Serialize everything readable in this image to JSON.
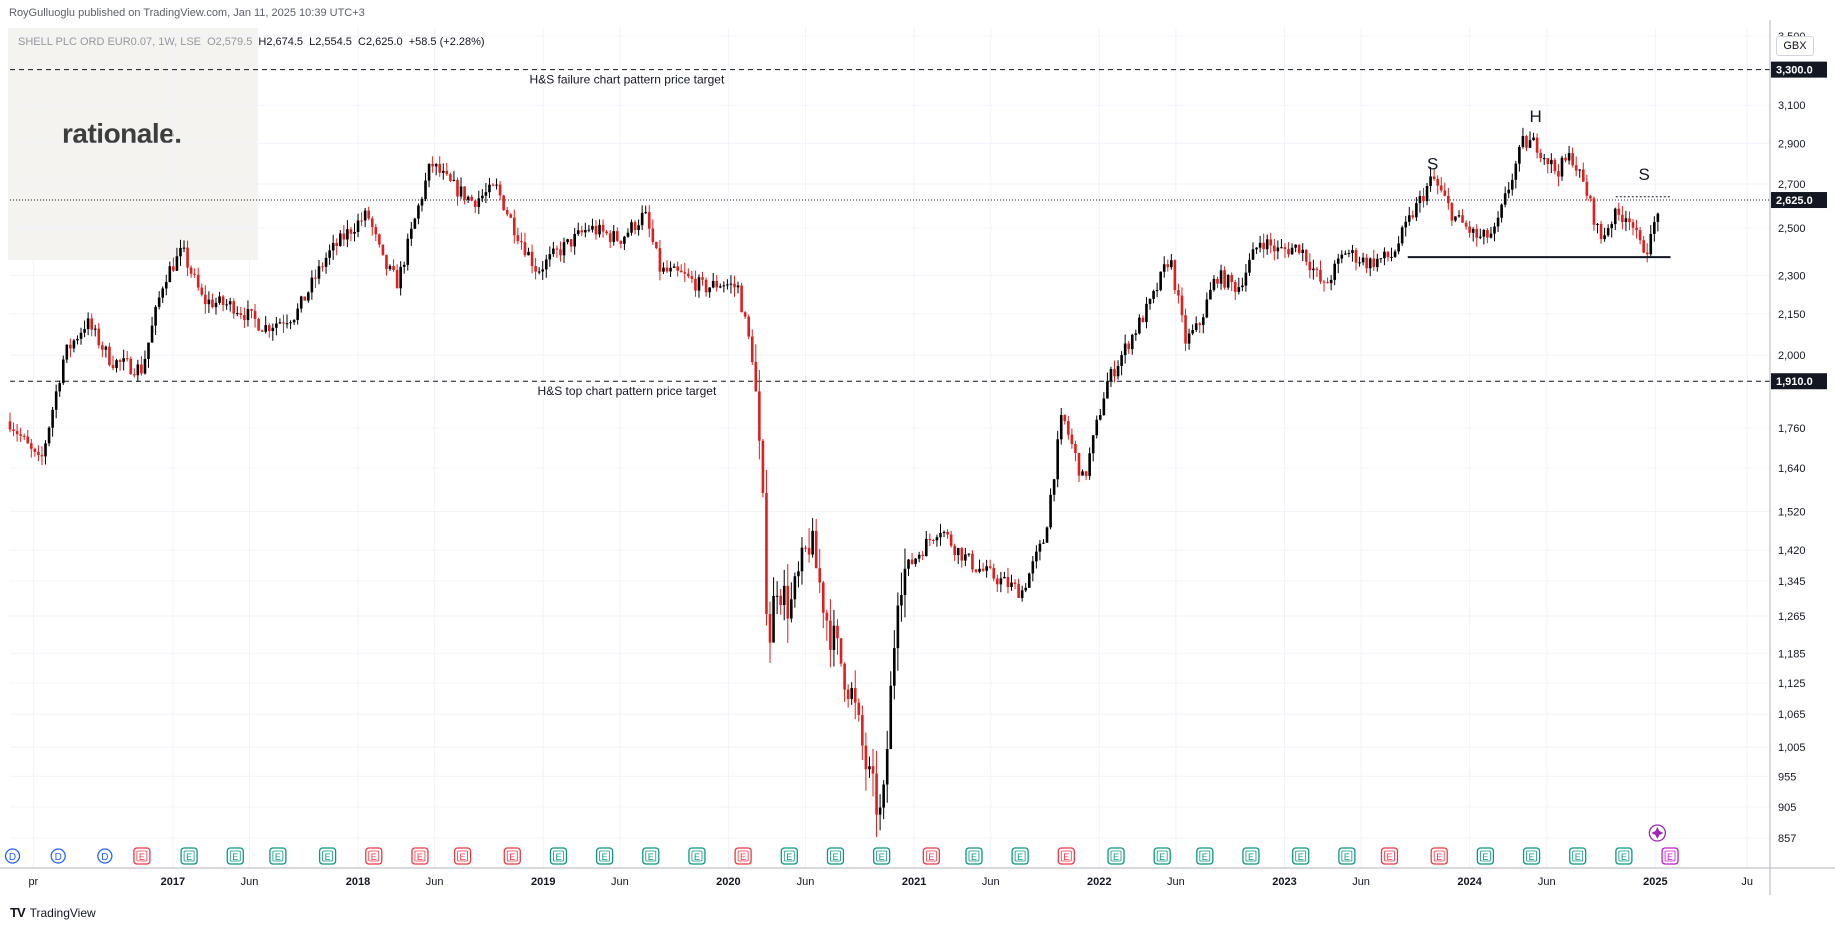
{
  "publisher": "RoyGulluoglu published on TradingView.com, Jan 11, 2025 10:39 UTC+3",
  "logo": "rationale.",
  "legend": {
    "symbol": "SHELL PLC ORD EUR0.07, 1W, LSE",
    "open": "O2,579.5",
    "high": "H2,674.5",
    "low": "L2,554.5",
    "close": "C2,625.0",
    "change": "+58.5 (+2.28%)"
  },
  "currency": "GBX",
  "footer": "TradingView",
  "colors": {
    "up": "#000000",
    "down": "#e01e1e",
    "grid": "#f0f3fa",
    "earnings": "#089981",
    "earnings_miss": "#f23645",
    "dividend": "#2962ff"
  },
  "chart_data": {
    "type": "candlestick",
    "interval": "1W",
    "scale": "log",
    "ylim": [
      813,
      3550
    ],
    "y_ticks": [
      857,
      905,
      955,
      1005,
      1065,
      1125,
      1185,
      1265,
      1345,
      1420,
      1520,
      1640,
      1760,
      2000,
      2150,
      2300,
      2500,
      2700,
      2900,
      3100,
      3500
    ],
    "x_labels": [
      "pr",
      "2017",
      "Jun",
      "2018",
      "Jun",
      "2019",
      "Jun",
      "2020",
      "Jun",
      "2021",
      "Jun",
      "2022",
      "Jun",
      "2023",
      "Jun",
      "2024",
      "Jun",
      "2025",
      "Ju"
    ],
    "x_label_dates": [
      "2016-04-01",
      "2017-01-01",
      "2017-06-01",
      "2018-01-01",
      "2018-06-01",
      "2019-01-01",
      "2019-06-01",
      "2020-01-01",
      "2020-06-01",
      "2021-01-01",
      "2021-06-01",
      "2022-01-01",
      "2022-06-01",
      "2023-01-01",
      "2023-06-01",
      "2024-01-01",
      "2024-06-01",
      "2025-01-01",
      "2025-07-01"
    ],
    "x_range": [
      "2016-02-15",
      "2025-08-15"
    ],
    "current_price": 2625.0,
    "current_price_label": "2,625.0",
    "levels": [
      {
        "price": 3300,
        "label": "3,300.0",
        "text": "H&S failure chart pattern price target",
        "text_date": "2019-06-15"
      },
      {
        "price": 1910,
        "label": "1,910.0",
        "text": "H&S top chart pattern price target",
        "text_date": "2019-06-15"
      }
    ],
    "neckline": {
      "price": 2375,
      "start": "2023-09-01",
      "end": "2025-01-31"
    },
    "resistance": {
      "price": 2640,
      "start": "2024-10-15",
      "end": "2025-01-31"
    },
    "pattern_labels": [
      {
        "text": "S",
        "date": "2023-10-20",
        "price": 2770
      },
      {
        "text": "H",
        "date": "2024-05-10",
        "price": 3010
      },
      {
        "text": "S",
        "date": "2024-12-10",
        "price": 2720
      }
    ],
    "price_path": [
      [
        "2016-02-15",
        1780
      ],
      [
        "2016-04-15",
        1650
      ],
      [
        "2016-06-01",
        2000
      ],
      [
        "2016-07-15",
        2120
      ],
      [
        "2016-09-01",
        1980
      ],
      [
        "2016-11-01",
        1950
      ],
      [
        "2016-12-15",
        2290
      ],
      [
        "2017-01-20",
        2400
      ],
      [
        "2017-03-01",
        2200
      ],
      [
        "2017-05-01",
        2180
      ],
      [
        "2017-07-01",
        2100
      ],
      [
        "2017-09-01",
        2150
      ],
      [
        "2017-11-01",
        2380
      ],
      [
        "2017-12-20",
        2500
      ],
      [
        "2018-01-20",
        2560
      ],
      [
        "2018-02-20",
        2350
      ],
      [
        "2018-03-20",
        2270
      ],
      [
        "2018-05-01",
        2600
      ],
      [
        "2018-05-25",
        2800
      ],
      [
        "2018-07-01",
        2700
      ],
      [
        "2018-08-15",
        2620
      ],
      [
        "2018-10-01",
        2680
      ],
      [
        "2018-11-01",
        2520
      ],
      [
        "2018-12-20",
        2320
      ],
      [
        "2019-02-01",
        2400
      ],
      [
        "2019-04-01",
        2500
      ],
      [
        "2019-06-01",
        2450
      ],
      [
        "2019-07-20",
        2560
      ],
      [
        "2019-08-20",
        2320
      ],
      [
        "2019-10-01",
        2300
      ],
      [
        "2019-11-15",
        2250
      ],
      [
        "2019-12-20",
        2270
      ],
      [
        "2020-01-20",
        2250
      ],
      [
        "2020-02-20",
        1970
      ],
      [
        "2020-03-10",
        1500
      ],
      [
        "2020-03-20",
        1200
      ],
      [
        "2020-04-05",
        1350
      ],
      [
        "2020-05-01",
        1280
      ],
      [
        "2020-06-10",
        1450
      ],
      [
        "2020-07-15",
        1250
      ],
      [
        "2020-09-01",
        1100
      ],
      [
        "2020-10-01",
        960
      ],
      [
        "2020-10-30",
        880
      ],
      [
        "2020-12-01",
        1350
      ],
      [
        "2021-01-15",
        1420
      ],
      [
        "2021-02-20",
        1480
      ],
      [
        "2021-03-20",
        1430
      ],
      [
        "2021-05-01",
        1380
      ],
      [
        "2021-06-15",
        1350
      ],
      [
        "2021-08-01",
        1320
      ],
      [
        "2021-09-15",
        1450
      ],
      [
        "2021-10-20",
        1800
      ],
      [
        "2021-12-01",
        1600
      ],
      [
        "2022-01-15",
        1900
      ],
      [
        "2022-03-01",
        2050
      ],
      [
        "2022-04-15",
        2200
      ],
      [
        "2022-05-20",
        2380
      ],
      [
        "2022-06-20",
        2050
      ],
      [
        "2022-07-15",
        2100
      ],
      [
        "2022-08-20",
        2300
      ],
      [
        "2022-10-01",
        2250
      ],
      [
        "2022-11-15",
        2450
      ],
      [
        "2022-12-20",
        2400
      ],
      [
        "2023-02-01",
        2420
      ],
      [
        "2023-03-20",
        2250
      ],
      [
        "2023-05-01",
        2400
      ],
      [
        "2023-06-15",
        2350
      ],
      [
        "2023-08-01",
        2380
      ],
      [
        "2023-09-10",
        2560
      ],
      [
        "2023-10-20",
        2730
      ],
      [
        "2023-12-01",
        2550
      ],
      [
        "2024-01-20",
        2450
      ],
      [
        "2024-02-20",
        2480
      ],
      [
        "2024-03-20",
        2700
      ],
      [
        "2024-04-15",
        2900
      ],
      [
        "2024-05-10",
        2900
      ],
      [
        "2024-06-20",
        2760
      ],
      [
        "2024-07-20",
        2840
      ],
      [
        "2024-08-20",
        2650
      ],
      [
        "2024-09-15",
        2450
      ],
      [
        "2024-10-10",
        2550
      ],
      [
        "2024-11-10",
        2560
      ],
      [
        "2024-12-01",
        2420
      ],
      [
        "2024-12-20",
        2420
      ],
      [
        "2025-01-10",
        2625
      ]
    ],
    "events": [
      {
        "type": "D",
        "date": "2016-02-20"
      },
      {
        "type": "D",
        "date": "2016-05-20"
      },
      {
        "type": "D",
        "date": "2016-08-20"
      },
      {
        "type": "E",
        "date": "2016-11-01",
        "miss": true
      },
      {
        "type": "E",
        "date": "2017-02-02"
      },
      {
        "type": "E",
        "date": "2017-05-04"
      },
      {
        "type": "E",
        "date": "2017-07-27"
      },
      {
        "type": "E",
        "date": "2017-11-02"
      },
      {
        "type": "E",
        "date": "2018-02-01",
        "miss": true
      },
      {
        "type": "E",
        "date": "2018-05-03",
        "miss": true
      },
      {
        "type": "E",
        "date": "2018-07-26",
        "miss": true
      },
      {
        "type": "E",
        "date": "2018-11-01",
        "miss": true
      },
      {
        "type": "E",
        "date": "2019-01-31"
      },
      {
        "type": "E",
        "date": "2019-05-02"
      },
      {
        "type": "E",
        "date": "2019-08-01"
      },
      {
        "type": "E",
        "date": "2019-10-31"
      },
      {
        "type": "E",
        "date": "2020-01-30",
        "miss": true
      },
      {
        "type": "E",
        "date": "2020-04-30"
      },
      {
        "type": "E",
        "date": "2020-07-30"
      },
      {
        "type": "E",
        "date": "2020-10-29"
      },
      {
        "type": "E",
        "date": "2021-02-04",
        "miss": true
      },
      {
        "type": "E",
        "date": "2021-04-29"
      },
      {
        "type": "E",
        "date": "2021-07-29"
      },
      {
        "type": "E",
        "date": "2021-10-28",
        "miss": true
      },
      {
        "type": "E",
        "date": "2022-02-03"
      },
      {
        "type": "E",
        "date": "2022-05-05"
      },
      {
        "type": "E",
        "date": "2022-07-28"
      },
      {
        "type": "E",
        "date": "2022-10-27"
      },
      {
        "type": "E",
        "date": "2023-02-02"
      },
      {
        "type": "E",
        "date": "2023-05-04"
      },
      {
        "type": "E",
        "date": "2023-07-27",
        "miss": true
      },
      {
        "type": "E",
        "date": "2023-11-02",
        "miss": true
      },
      {
        "type": "E",
        "date": "2024-02-01"
      },
      {
        "type": "E",
        "date": "2024-05-02"
      },
      {
        "type": "E",
        "date": "2024-08-01"
      },
      {
        "type": "E",
        "date": "2024-10-31"
      },
      {
        "type": "E",
        "date": "2025-01-30",
        "miss": true,
        "upcoming": true
      }
    ]
  }
}
